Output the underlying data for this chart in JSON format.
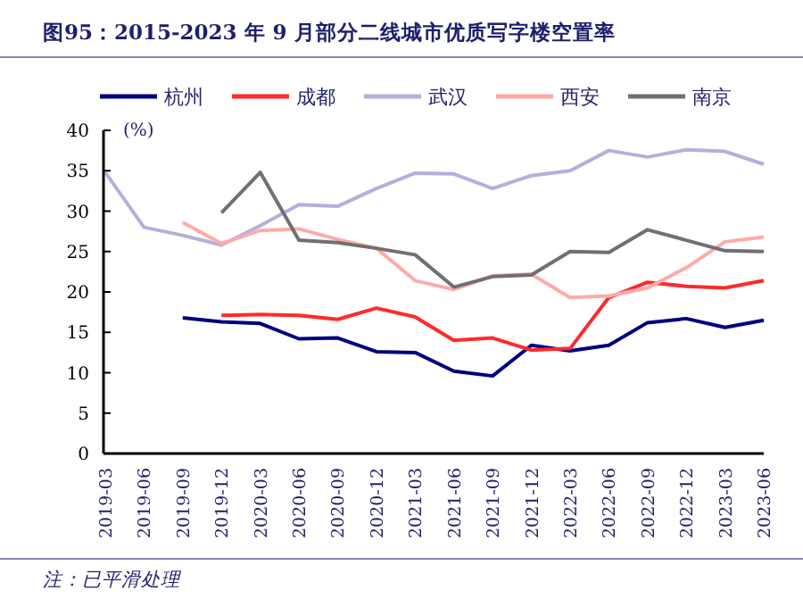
{
  "chart_data": {
    "type": "line",
    "title": "图95：2015-2023 年 9 月部分二线城市优质写字楼空置率",
    "ylabel": "(%)",
    "categories": [
      "2019-03",
      "2019-06",
      "2019-09",
      "2019-12",
      "2020-03",
      "2020-06",
      "2020-09",
      "2020-12",
      "2021-03",
      "2021-06",
      "2021-09",
      "2021-12",
      "2022-03",
      "2022-06",
      "2022-09",
      "2022-12",
      "2023-03",
      "2023-06"
    ],
    "series": [
      {
        "name": "杭州",
        "color": "#000080",
        "values": [
          null,
          null,
          16.8,
          16.3,
          16.1,
          14.2,
          14.3,
          12.6,
          12.5,
          10.2,
          9.6,
          13.4,
          12.7,
          13.4,
          16.2,
          16.7,
          15.6,
          16.5
        ]
      },
      {
        "name": "成都",
        "color": "#ff2a2a",
        "values": [
          null,
          null,
          null,
          17.1,
          17.2,
          17.1,
          16.6,
          18.0,
          16.9,
          14.0,
          14.3,
          12.8,
          13.0,
          19.3,
          21.2,
          20.7,
          20.5,
          21.4
        ]
      },
      {
        "name": "武汉",
        "color": "#b3b0dc",
        "values": [
          34.8,
          28.0,
          27.0,
          25.8,
          28.2,
          30.8,
          30.6,
          32.8,
          34.7,
          34.6,
          32.8,
          34.4,
          35.0,
          37.5,
          36.7,
          37.6,
          37.4,
          35.8
        ]
      },
      {
        "name": "西安",
        "color": "#ffaaaa",
        "values": [
          null,
          null,
          28.6,
          26.0,
          27.6,
          27.8,
          26.5,
          25.4,
          21.4,
          20.3,
          22.0,
          22.2,
          19.3,
          19.5,
          20.5,
          23.0,
          26.2,
          26.8
        ]
      },
      {
        "name": "南京",
        "color": "#707070",
        "values": [
          null,
          null,
          null,
          29.8,
          34.8,
          26.4,
          26.1,
          25.4,
          24.6,
          20.6,
          21.9,
          22.1,
          25.0,
          24.9,
          27.7,
          26.4,
          25.1,
          25.0
        ]
      }
    ],
    "ylim": [
      0,
      40
    ],
    "yticks": [
      0,
      5,
      10,
      15,
      20,
      25,
      30,
      35,
      40
    ],
    "grid": false,
    "legend": "top",
    "marker": "none",
    "line_style": "solid",
    "annotations": [
      "注：已平滑处理"
    ]
  }
}
